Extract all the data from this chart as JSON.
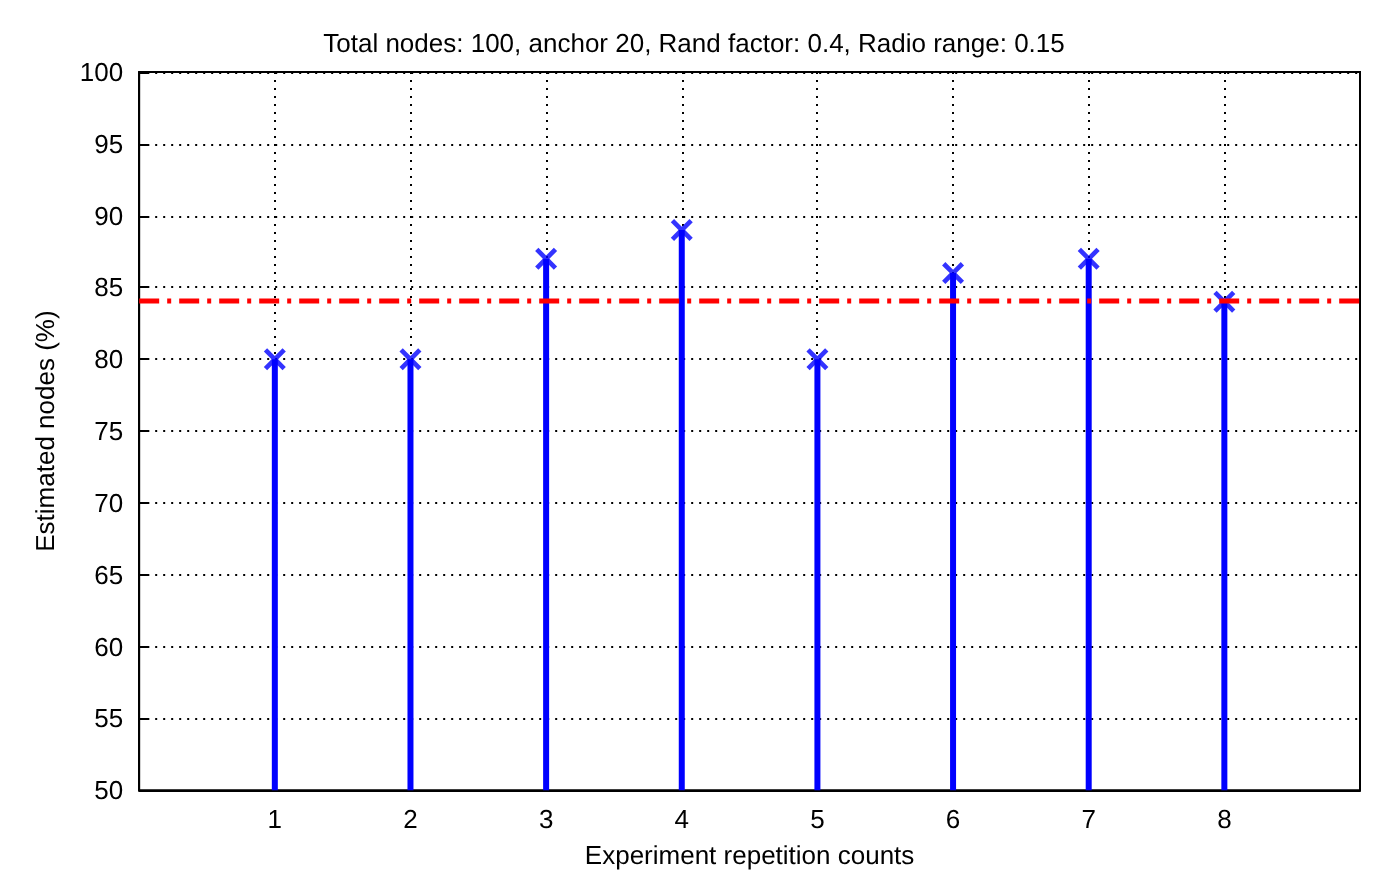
{
  "chart_data": {
    "type": "lollipop",
    "title": "Total nodes: 100, anchor 20, Rand factor: 0.4, Radio range: 0.15",
    "xlabel": "Experiment repetition counts",
    "ylabel": "Estimated nodes (%)",
    "x": [
      1,
      2,
      3,
      4,
      5,
      6,
      7,
      8
    ],
    "series": [
      {
        "color": "#0000ff",
        "values": [
          80,
          80,
          87,
          89,
          80,
          86,
          87,
          84
        ]
      }
    ],
    "xlim": [
      0,
      9
    ],
    "xticks": [
      1,
      2,
      3,
      4,
      5,
      6,
      7,
      8
    ],
    "ylim": [
      50,
      100
    ],
    "yticks": [
      50,
      55,
      60,
      65,
      70,
      75,
      80,
      85,
      90,
      95,
      100
    ],
    "ref_lines": [
      {
        "axis": "y",
        "value": 84.1,
        "color": "#ff0000",
        "line_style": "dashed"
      }
    ],
    "grid": true,
    "marker": "cross"
  }
}
